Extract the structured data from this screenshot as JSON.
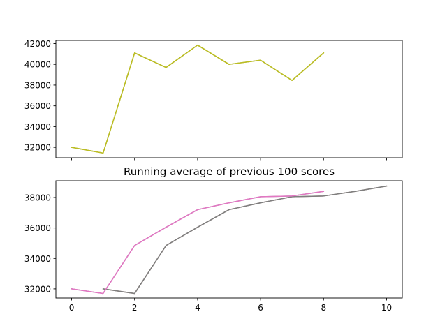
{
  "chart_data": [
    {
      "type": "line",
      "title": "",
      "xlabel": "",
      "ylabel": "",
      "xlim": [
        -0.5,
        10.5
      ],
      "ylim": [
        31000,
        42300
      ],
      "xticks": [
        0,
        2,
        4,
        6,
        8,
        10
      ],
      "yticks": [
        32000,
        34000,
        36000,
        38000,
        40000,
        42000
      ],
      "show_x_tick_labels": false,
      "grid": false,
      "series": [
        {
          "color": "#9aa72a",
          "x": [
            0,
            1,
            2,
            3,
            4,
            5,
            6,
            7,
            8
          ],
          "y": [
            32000,
            31450,
            41100,
            39700,
            41850,
            40000,
            40400,
            38450,
            41100
          ]
        },
        {
          "color": "#bcbd22",
          "x": [
            0,
            1,
            2,
            3,
            4,
            5,
            6,
            7,
            8
          ],
          "y": [
            32000,
            31450,
            41100,
            39700,
            41850,
            40000,
            40400,
            38450,
            41100
          ]
        }
      ]
    },
    {
      "type": "line",
      "title": "Running average of previous 100 scores",
      "xlabel": "",
      "ylabel": "",
      "xlim": [
        -0.5,
        10.5
      ],
      "ylim": [
        31400,
        39100
      ],
      "xticks": [
        0,
        2,
        4,
        6,
        8,
        10
      ],
      "yticks": [
        32000,
        34000,
        36000,
        38000
      ],
      "show_x_tick_labels": true,
      "grid": false,
      "series": [
        {
          "color": "#8c6d66",
          "x": [
            1,
            2,
            3,
            4,
            5,
            6,
            7,
            8,
            9,
            10
          ],
          "y": [
            32000,
            31700,
            34850,
            36050,
            37200,
            37650,
            38050,
            38100,
            38400,
            38750
          ]
        },
        {
          "color": "#7f7f7f",
          "x": [
            1,
            2,
            3,
            4,
            5,
            6,
            7,
            8,
            9,
            10
          ],
          "y": [
            32000,
            31700,
            34850,
            36050,
            37200,
            37650,
            38050,
            38100,
            38400,
            38750
          ]
        },
        {
          "color": "#9a78a6",
          "x": [
            0,
            1,
            2,
            3,
            4,
            5,
            6,
            7,
            8
          ],
          "y": [
            32000,
            31700,
            34850,
            36050,
            37200,
            37650,
            38050,
            38100,
            38400
          ]
        },
        {
          "color": "#e377c2",
          "x": [
            0,
            1,
            2,
            3,
            4,
            5,
            6,
            7,
            8
          ],
          "y": [
            32000,
            31700,
            34850,
            36050,
            37200,
            37650,
            38050,
            38100,
            38400
          ]
        }
      ]
    }
  ]
}
